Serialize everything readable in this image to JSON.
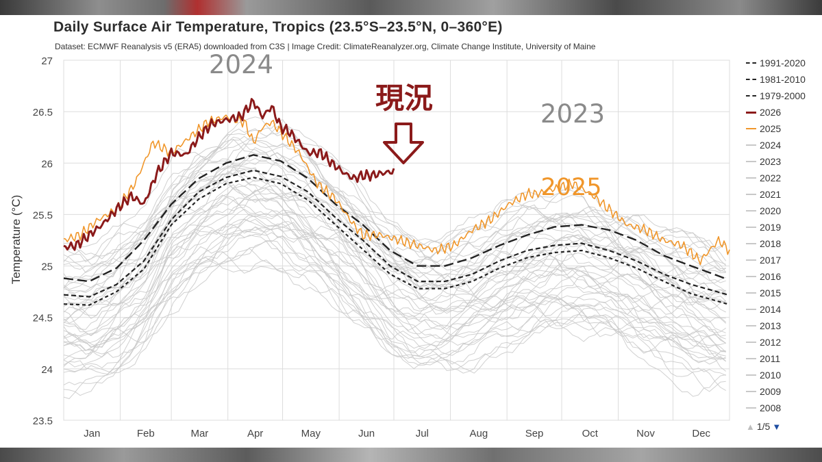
{
  "title": "Daily Surface Air Temperature, Tropics (23.5°S–23.5°N, 0–360°E)",
  "subtitle": "Dataset: ECMWF Reanalysis v5 (ERA5) downloaded from C3S | Image Credit: ClimateReanalyzer.org, Climate Change Institute, University of Maine",
  "legend": [
    {
      "label": "1991-2020",
      "color": "#222222",
      "style": "long-dash"
    },
    {
      "label": "1981-2010",
      "color": "#222222",
      "style": "dash-dot"
    },
    {
      "label": "1979-2000",
      "color": "#222222",
      "style": "short-dash"
    },
    {
      "label": "2026",
      "color": "#8b1a1a",
      "style": "solid-thick"
    },
    {
      "label": "2025",
      "color": "#f0962a",
      "style": "solid"
    },
    {
      "label": "2024",
      "color": "#c8c8c8",
      "style": "solid"
    },
    {
      "label": "2023",
      "color": "#c8c8c8",
      "style": "solid"
    },
    {
      "label": "2022",
      "color": "#c8c8c8",
      "style": "solid"
    },
    {
      "label": "2021",
      "color": "#c8c8c8",
      "style": "solid"
    },
    {
      "label": "2020",
      "color": "#c8c8c8",
      "style": "solid"
    },
    {
      "label": "2019",
      "color": "#c8c8c8",
      "style": "solid"
    },
    {
      "label": "2018",
      "color": "#c8c8c8",
      "style": "solid"
    },
    {
      "label": "2017",
      "color": "#c8c8c8",
      "style": "solid"
    },
    {
      "label": "2016",
      "color": "#c8c8c8",
      "style": "solid"
    },
    {
      "label": "2015",
      "color": "#c8c8c8",
      "style": "solid"
    },
    {
      "label": "2014",
      "color": "#c8c8c8",
      "style": "solid"
    },
    {
      "label": "2013",
      "color": "#c8c8c8",
      "style": "solid"
    },
    {
      "label": "2012",
      "color": "#c8c8c8",
      "style": "solid"
    },
    {
      "label": "2011",
      "color": "#c8c8c8",
      "style": "solid"
    },
    {
      "label": "2010",
      "color": "#c8c8c8",
      "style": "solid"
    },
    {
      "label": "2009",
      "color": "#c8c8c8",
      "style": "solid"
    },
    {
      "label": "2008",
      "color": "#c8c8c8",
      "style": "solid"
    }
  ],
  "legend_pager": {
    "text": "1/5",
    "up_icon": "triangle-up-icon",
    "down_icon": "triangle-down-icon"
  },
  "annotations": {
    "current": "現況",
    "year_2024": "2024",
    "year_2023": "2023",
    "year_2025": "2025",
    "arrow_icon": "hollow-down-arrow-icon"
  },
  "colors": {
    "y2026": "#8b1a1a",
    "y2025": "#f0962a",
    "background_years": "#c8c8c8",
    "climatology": "#222222",
    "grid": "#dcdcdc",
    "annotation_gray": "#8a8a8a",
    "annotation_current": "#8b1a1a"
  },
  "chart_data": {
    "type": "line",
    "title": "Daily Surface Air Temperature, Tropics (23.5°S–23.5°N, 0–360°E)",
    "ylabel": "Temperature (°C)",
    "xlabel": "",
    "x_unit": "day_of_year",
    "ylim": [
      23.5,
      27
    ],
    "xlim": [
      1,
      366
    ],
    "yticks": [
      23.5,
      24,
      24.5,
      25,
      25.5,
      26,
      26.5,
      27
    ],
    "month_labels": [
      "Jan",
      "Feb",
      "Mar",
      "Apr",
      "May",
      "Jun",
      "Jul",
      "Aug",
      "Sep",
      "Oct",
      "Nov",
      "Dec"
    ],
    "grid": true,
    "legend_position": "right",
    "series": [
      {
        "name": "1991-2020",
        "style": "long-dash",
        "x": [
          1,
          15,
          30,
          45,
          60,
          75,
          90,
          105,
          120,
          135,
          150,
          165,
          180,
          195,
          210,
          225,
          240,
          255,
          270,
          285,
          300,
          315,
          330,
          345,
          365
        ],
        "y": [
          24.88,
          24.85,
          24.98,
          25.25,
          25.6,
          25.85,
          26.0,
          26.08,
          26.02,
          25.85,
          25.6,
          25.4,
          25.15,
          25.0,
          25.0,
          25.08,
          25.2,
          25.3,
          25.38,
          25.4,
          25.35,
          25.25,
          25.1,
          25.0,
          24.87
        ]
      },
      {
        "name": "1981-2010",
        "style": "dash-dot",
        "x": [
          1,
          15,
          30,
          45,
          60,
          75,
          90,
          105,
          120,
          135,
          150,
          165,
          180,
          195,
          210,
          225,
          240,
          255,
          270,
          285,
          300,
          315,
          330,
          345,
          365
        ],
        "y": [
          24.72,
          24.7,
          24.82,
          25.05,
          25.45,
          25.72,
          25.86,
          25.93,
          25.87,
          25.72,
          25.47,
          25.25,
          25.0,
          24.85,
          24.85,
          24.92,
          25.05,
          25.15,
          25.2,
          25.22,
          25.15,
          25.05,
          24.92,
          24.82,
          24.72
        ]
      },
      {
        "name": "1979-2000",
        "style": "short-dash",
        "x": [
          1,
          15,
          30,
          45,
          60,
          75,
          90,
          105,
          120,
          135,
          150,
          165,
          180,
          195,
          210,
          225,
          240,
          255,
          270,
          285,
          300,
          315,
          330,
          345,
          365
        ],
        "y": [
          24.63,
          24.62,
          24.75,
          24.97,
          25.4,
          25.65,
          25.8,
          25.86,
          25.8,
          25.64,
          25.4,
          25.16,
          24.92,
          24.78,
          24.78,
          24.85,
          24.98,
          25.08,
          25.13,
          25.15,
          25.08,
          24.98,
          24.85,
          24.73,
          24.63
        ]
      },
      {
        "name": "2026",
        "style": "solid-thick",
        "x": [
          1,
          8,
          15,
          22,
          30,
          38,
          45,
          52,
          60,
          68,
          75,
          82,
          90,
          98,
          105,
          110,
          115,
          120,
          125,
          130,
          135,
          142,
          148,
          155,
          160,
          165,
          170,
          175,
          182
        ],
        "y": [
          25.18,
          25.2,
          25.3,
          25.4,
          25.55,
          25.68,
          25.6,
          25.9,
          26.1,
          26.08,
          26.25,
          26.38,
          26.42,
          26.45,
          26.6,
          26.45,
          26.55,
          26.35,
          26.3,
          26.2,
          26.1,
          26.1,
          26.0,
          25.9,
          25.85,
          25.88,
          25.88,
          25.9,
          25.92
        ]
      },
      {
        "name": "2025",
        "x": [
          1,
          10,
          20,
          30,
          40,
          50,
          60,
          70,
          80,
          90,
          100,
          105,
          110,
          115,
          120,
          130,
          140,
          150,
          160,
          165,
          170,
          175,
          185,
          195,
          205,
          215,
          225,
          235,
          245,
          255,
          260,
          270,
          280,
          290,
          300,
          310,
          320,
          330,
          340,
          350,
          355,
          360,
          366
        ],
        "y": [
          25.25,
          25.3,
          25.45,
          25.55,
          25.8,
          26.2,
          26.1,
          26.25,
          26.4,
          26.45,
          26.4,
          26.2,
          26.35,
          26.4,
          26.3,
          26.1,
          25.8,
          25.65,
          25.4,
          25.3,
          25.3,
          25.3,
          25.25,
          25.2,
          25.15,
          25.2,
          25.35,
          25.45,
          25.6,
          25.7,
          25.7,
          25.75,
          25.8,
          25.7,
          25.55,
          25.4,
          25.35,
          25.25,
          25.2,
          25.05,
          25.15,
          25.25,
          25.15
        ]
      }
    ],
    "annotations": [
      {
        "text": "現況",
        "x": 176,
        "y": 26.65
      },
      {
        "text": "2024",
        "x": 95,
        "y": 26.95
      },
      {
        "text": "2023",
        "x": 258,
        "y": 26.25
      },
      {
        "text": "2025",
        "x": 255,
        "y": 25.55
      }
    ]
  }
}
